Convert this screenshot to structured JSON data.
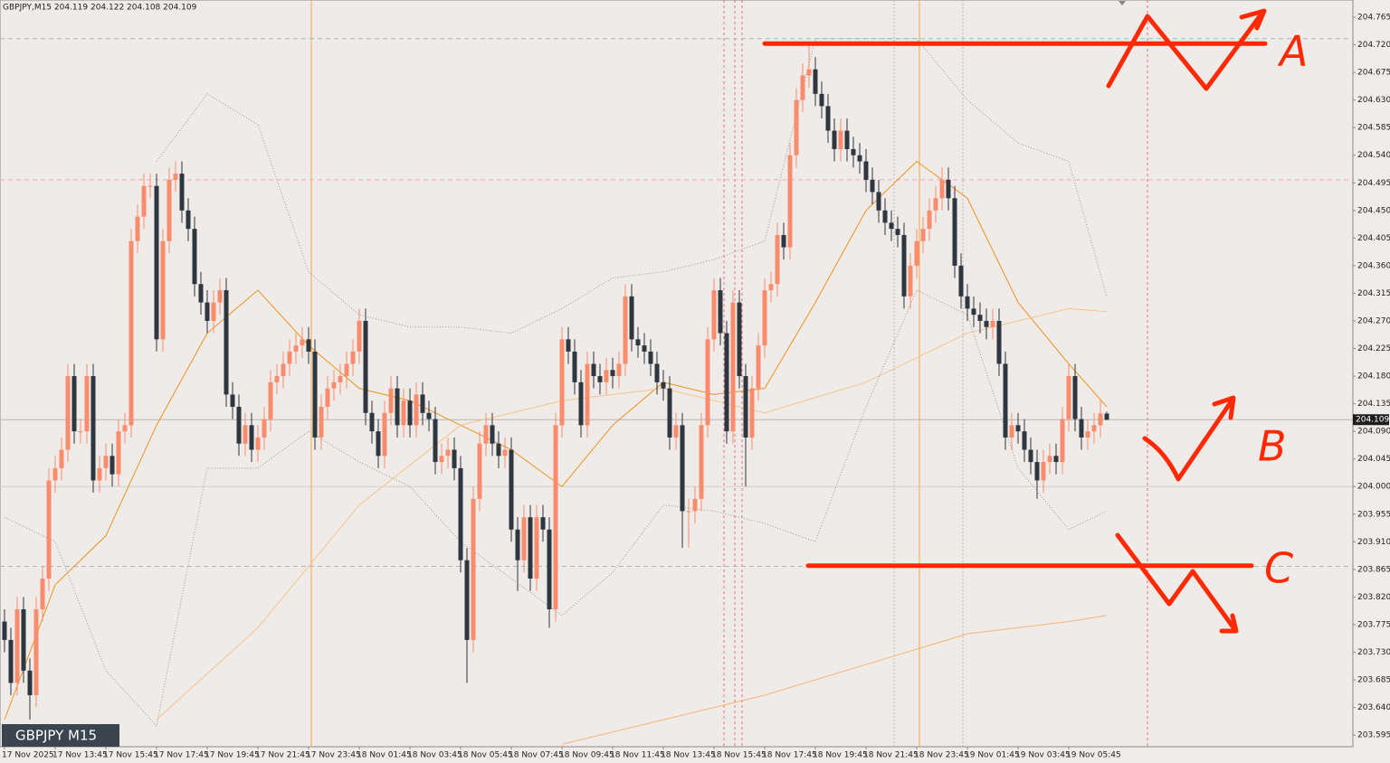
{
  "chart_data": {
    "type": "candlestick",
    "title": "GBPJPY,M15  204.119 204.122 204.108 204.109",
    "symbol_box": "GBPJPY M15",
    "up_color": "#f98c6c",
    "down_color": "#2e3640",
    "ylim": [
      203.576,
      204.793
    ],
    "yticks": [
      204.765,
      {
        "value": 204.72,
        "label": "204.720"
      },
      204.675,
      {
        "value": 204.63,
        "label": "204.630"
      },
      204.585,
      {
        "value": 204.54,
        "label": "204.540"
      },
      204.495,
      {
        "value": 204.45,
        "label": "204.450"
      },
      204.405,
      {
        "value": 204.36,
        "label": "204.360"
      },
      204.315,
      {
        "value": 204.27,
        "label": "204.270"
      },
      204.225,
      {
        "value": 204.18,
        "label": "204.180"
      },
      204.135,
      {
        "value": 204.09,
        "label": "204.090"
      },
      204.045,
      {
        "value": 204,
        "label": "204.000"
      },
      203.955,
      {
        "value": 203.91,
        "label": "203.910"
      },
      203.865,
      {
        "value": 203.82,
        "label": "203.820"
      },
      203.775,
      {
        "value": 203.73,
        "label": "203.730"
      },
      203.685,
      {
        "value": 203.64,
        "label": "203.640"
      },
      203.595
    ],
    "current_price": 204.109,
    "categories": [
      "17 Nov 2025",
      null,
      null,
      null,
      null,
      null,
      null,
      null,
      "17 Nov 13:45",
      null,
      null,
      null,
      null,
      null,
      null,
      null,
      "17 Nov 15:45",
      null,
      null,
      null,
      null,
      null,
      null,
      null,
      "17 Nov 17:45",
      null,
      null,
      null,
      null,
      null,
      null,
      null,
      "17 Nov 19:45",
      null,
      null,
      null,
      null,
      null,
      null,
      null,
      "17 Nov 21:45",
      null,
      null,
      null,
      null,
      null,
      null,
      null,
      "17 Nov 23:45",
      null,
      null,
      null,
      null,
      null,
      null,
      null,
      "18 Nov 01:45",
      null,
      null,
      null,
      null,
      null,
      null,
      null,
      "18 Nov 03:45",
      null,
      null,
      null,
      null,
      null,
      null,
      null,
      "18 Nov 05:45",
      null,
      null,
      null,
      null,
      null,
      null,
      null,
      "18 Nov 07:45",
      null,
      null,
      null,
      null,
      null,
      null,
      null,
      "18 Nov 09:45",
      null,
      null,
      null,
      null,
      null,
      null,
      null,
      "18 Nov 11:45",
      null,
      null,
      null,
      null,
      null,
      null,
      null,
      "18 Nov 13:45",
      null,
      null,
      null,
      null,
      null,
      null,
      null,
      "18 Nov 15:45",
      null,
      null,
      null,
      null,
      null,
      null,
      null,
      "18 Nov 17:45",
      null,
      null,
      null,
      null,
      null,
      null,
      null,
      "18 Nov 19:45",
      null,
      null,
      null,
      null,
      null,
      null,
      null,
      "18 Nov 21:45",
      null,
      null,
      null,
      null,
      null,
      null,
      null,
      "18 Nov 23:45",
      null,
      null,
      null,
      null,
      null,
      null,
      null,
      "19 Nov 01:45",
      null,
      null,
      null,
      null,
      null,
      null,
      null,
      "19 Nov 03:45",
      null,
      null,
      null,
      null,
      null,
      null,
      null,
      "19 Nov 05:45",
      null,
      null,
      null,
      null,
      null,
      null
    ],
    "open": [
      203.78,
      203.75,
      203.68,
      203.8,
      203.7,
      203.66,
      203.8,
      203.85,
      204.01,
      204.03,
      204.06,
      204.18,
      204.09,
      204.09,
      204.18,
      204.01,
      204.03,
      204.05,
      204.02,
      204.09,
      204.1,
      204.4,
      204.44,
      204.49,
      204.49,
      204.24,
      204.4,
      204.5,
      204.51,
      204.45,
      204.42,
      204.33,
      204.3,
      204.27,
      204.3,
      204.32,
      204.15,
      204.13,
      204.07,
      204.1,
      204.06,
      204.08,
      204.11,
      204.17,
      204.18,
      204.2,
      204.22,
      204.23,
      204.24,
      204.22,
      204.08,
      204.13,
      204.16,
      204.17,
      204.18,
      204.2,
      204.22,
      204.27,
      204.12,
      204.09,
      204.05,
      204.12,
      204.16,
      204.1,
      204.14,
      204.1,
      204.15,
      204.12,
      204.11,
      204.04,
      204.05,
      204.06,
      204.03,
      203.88,
      203.75,
      203.98,
      204.07,
      204.1,
      204.07,
      204.05,
      204.06,
      203.93,
      203.88,
      203.95,
      203.85,
      203.95,
      203.93,
      203.8,
      204.1,
      204.24,
      204.22,
      204.17,
      204.1,
      204.2,
      204.18,
      204.17,
      204.19,
      204.18,
      204.2,
      204.31,
      204.24,
      204.23,
      204.22,
      204.2,
      204.17,
      204.16,
      204.08,
      204.1,
      203.96,
      203.96,
      203.98,
      204.1,
      204.24,
      204.32,
      204.25,
      204.09,
      204.3,
      204.18,
      204.08,
      204.16,
      204.23,
      204.32,
      204.33,
      204.41,
      204.39,
      204.54,
      204.63,
      204.67,
      204.68,
      204.64,
      204.62,
      204.58,
      204.55,
      204.58,
      204.55,
      204.54,
      204.53,
      204.5,
      204.48,
      204.45,
      204.43,
      204.42,
      204.41,
      204.31,
      204.36,
      204.4,
      204.42,
      204.45,
      204.47,
      204.5,
      204.47,
      204.36,
      204.31,
      204.29,
      204.28,
      204.27,
      204.26,
      204.27,
      204.2,
      204.08,
      204.1,
      204.09,
      204.06,
      204.04,
      204.01,
      204.04,
      204.05,
      204.04,
      204.11,
      204.18,
      204.11,
      204.08,
      204.09,
      204.1,
      204.119
    ],
    "high": [
      203.8,
      203.77,
      203.82,
      203.82,
      203.72,
      203.82,
      203.87,
      204.03,
      204.05,
      204.08,
      204.2,
      204.2,
      204.11,
      204.2,
      204.2,
      204.05,
      204.07,
      204.07,
      204.11,
      204.12,
      204.42,
      204.46,
      204.51,
      204.51,
      204.51,
      204.42,
      204.52,
      204.53,
      204.53,
      204.47,
      204.44,
      204.35,
      204.32,
      204.32,
      204.34,
      204.34,
      204.17,
      204.15,
      204.12,
      204.12,
      204.1,
      204.13,
      204.19,
      204.2,
      204.22,
      204.24,
      204.25,
      204.26,
      204.26,
      204.24,
      204.15,
      204.18,
      204.19,
      204.2,
      204.22,
      204.24,
      204.29,
      204.29,
      204.14,
      204.11,
      204.14,
      204.18,
      204.18,
      204.16,
      204.16,
      204.17,
      204.17,
      204.14,
      204.13,
      204.07,
      204.08,
      204.08,
      204.05,
      203.9,
      204.0,
      204.09,
      204.12,
      204.12,
      204.09,
      204.08,
      204.08,
      203.95,
      203.97,
      203.97,
      203.97,
      203.97,
      203.95,
      204.12,
      204.26,
      204.26,
      204.24,
      204.19,
      204.22,
      204.22,
      204.2,
      204.21,
      204.21,
      204.22,
      204.33,
      204.33,
      204.26,
      204.25,
      204.24,
      204.22,
      204.19,
      204.18,
      204.12,
      204.12,
      203.98,
      204.0,
      204.12,
      204.26,
      204.34,
      204.34,
      204.27,
      204.32,
      204.32,
      204.2,
      204.18,
      204.25,
      204.34,
      204.35,
      204.43,
      204.43,
      204.56,
      204.65,
      204.69,
      204.72,
      204.7,
      204.66,
      204.64,
      204.6,
      204.6,
      204.6,
      204.57,
      204.56,
      204.55,
      204.52,
      204.5,
      204.47,
      204.45,
      204.44,
      204.43,
      204.38,
      204.42,
      204.44,
      204.47,
      204.49,
      204.52,
      204.52,
      204.49,
      204.38,
      204.33,
      204.31,
      204.3,
      204.29,
      204.29,
      204.29,
      204.22,
      204.12,
      204.12,
      204.11,
      204.08,
      204.06,
      204.06,
      204.07,
      204.07,
      204.13,
      204.2,
      204.2,
      204.13,
      204.11,
      204.12,
      204.14,
      204.122
    ],
    "low": [
      203.73,
      203.66,
      203.66,
      203.68,
      203.62,
      203.64,
      203.78,
      203.83,
      203.99,
      204.01,
      204.04,
      204.07,
      204.07,
      204.07,
      203.99,
      203.99,
      204.01,
      204.0,
      204.0,
      204.07,
      204.08,
      204.38,
      204.42,
      204.47,
      204.22,
      204.22,
      204.38,
      204.48,
      204.43,
      204.4,
      204.31,
      204.28,
      204.25,
      204.25,
      204.28,
      204.13,
      204.11,
      204.05,
      204.05,
      204.04,
      204.04,
      204.06,
      204.09,
      204.15,
      204.16,
      204.18,
      204.2,
      204.21,
      204.2,
      204.06,
      204.06,
      204.11,
      204.14,
      204.15,
      204.16,
      204.18,
      204.2,
      204.1,
      204.07,
      204.03,
      204.03,
      204.1,
      204.08,
      204.08,
      204.08,
      204.08,
      204.1,
      204.09,
      204.02,
      204.02,
      204.03,
      204.01,
      203.86,
      203.68,
      203.73,
      203.96,
      204.05,
      204.05,
      204.03,
      204.03,
      203.91,
      203.83,
      203.86,
      203.83,
      203.83,
      203.91,
      203.77,
      203.78,
      204.08,
      204.2,
      204.15,
      204.08,
      204.08,
      204.16,
      204.15,
      204.15,
      204.16,
      204.16,
      204.18,
      204.22,
      204.21,
      204.2,
      204.18,
      204.15,
      204.14,
      204.06,
      204.06,
      203.9,
      203.9,
      203.94,
      203.96,
      204.08,
      204.22,
      204.23,
      204.07,
      204.07,
      204.16,
      204.0,
      204.06,
      204.14,
      204.21,
      204.3,
      204.31,
      204.37,
      204.37,
      204.52,
      204.61,
      204.65,
      204.62,
      204.6,
      204.56,
      204.53,
      204.53,
      204.53,
      204.52,
      204.51,
      204.48,
      204.46,
      204.43,
      204.41,
      204.4,
      204.39,
      204.29,
      204.29,
      204.34,
      204.38,
      204.4,
      204.43,
      204.45,
      204.45,
      204.34,
      204.29,
      204.27,
      204.26,
      204.25,
      204.24,
      204.24,
      204.18,
      204.06,
      204.06,
      204.07,
      204.04,
      204.02,
      203.98,
      203.99,
      204.02,
      204.02,
      204.02,
      204.09,
      204.09,
      204.06,
      204.06,
      204.07,
      204.08,
      204.108
    ],
    "close": [
      203.75,
      203.68,
      203.8,
      203.7,
      203.66,
      203.8,
      203.85,
      204.01,
      204.03,
      204.06,
      204.18,
      204.09,
      204.09,
      204.18,
      204.01,
      204.03,
      204.05,
      204.02,
      204.09,
      204.1,
      204.4,
      204.44,
      204.49,
      204.49,
      204.24,
      204.4,
      204.5,
      204.51,
      204.45,
      204.42,
      204.33,
      204.3,
      204.27,
      204.3,
      204.32,
      204.15,
      204.13,
      204.07,
      204.1,
      204.06,
      204.08,
      204.11,
      204.17,
      204.18,
      204.2,
      204.22,
      204.23,
      204.24,
      204.22,
      204.08,
      204.13,
      204.16,
      204.17,
      204.18,
      204.2,
      204.22,
      204.27,
      204.12,
      204.09,
      204.05,
      204.12,
      204.16,
      204.1,
      204.14,
      204.1,
      204.15,
      204.12,
      204.11,
      204.04,
      204.05,
      204.06,
      204.03,
      203.88,
      203.75,
      203.98,
      204.07,
      204.1,
      204.07,
      204.05,
      204.06,
      203.93,
      203.88,
      203.95,
      203.85,
      203.95,
      203.93,
      203.8,
      204.1,
      204.24,
      204.22,
      204.17,
      204.1,
      204.2,
      204.18,
      204.17,
      204.19,
      204.18,
      204.2,
      204.31,
      204.24,
      204.23,
      204.22,
      204.2,
      204.17,
      204.16,
      204.08,
      204.1,
      203.96,
      203.96,
      203.98,
      204.1,
      204.24,
      204.32,
      204.25,
      204.09,
      204.3,
      204.18,
      204.08,
      204.16,
      204.23,
      204.32,
      204.33,
      204.41,
      204.39,
      204.54,
      204.63,
      204.67,
      204.68,
      204.64,
      204.62,
      204.58,
      204.55,
      204.58,
      204.55,
      204.54,
      204.53,
      204.5,
      204.48,
      204.45,
      204.43,
      204.42,
      204.41,
      204.31,
      204.36,
      204.4,
      204.42,
      204.45,
      204.47,
      204.5,
      204.47,
      204.36,
      204.31,
      204.29,
      204.28,
      204.27,
      204.26,
      204.27,
      204.2,
      204.08,
      204.1,
      204.09,
      204.06,
      204.04,
      204.01,
      204.04,
      204.05,
      204.04,
      204.11,
      204.18,
      204.11,
      204.08,
      204.09,
      204.1,
      204.119,
      204.109
    ],
    "overlays": [
      {
        "color": "#f0921e",
        "style": "solid",
        "x": [
          0,
          8,
          16,
          24,
          32,
          40,
          48,
          56,
          64,
          72,
          80,
          88,
          96,
          104,
          112,
          120,
          128,
          136,
          144,
          152,
          160,
          168,
          174
        ],
        "values": [
          203.62,
          203.84,
          203.92,
          204.1,
          204.25,
          204.32,
          204.23,
          204.16,
          204.14,
          204.1,
          204.06,
          204.0,
          204.1,
          204.17,
          204.15,
          204.16,
          204.3,
          204.45,
          204.53,
          204.47,
          204.3,
          204.2,
          204.13
        ]
      },
      {
        "color": "#f7c48a",
        "style": "solid",
        "x": [
          24,
          40,
          56,
          72,
          88,
          104,
          120,
          136,
          152,
          168,
          174
        ],
        "values": [
          203.62,
          203.77,
          203.97,
          204.1,
          204.14,
          204.16,
          204.12,
          204.17,
          204.25,
          204.29,
          204.285
        ]
      },
      {
        "color": "#f5b571",
        "style": "solid",
        "x": [
          88,
          104,
          120,
          136,
          152,
          168,
          174
        ],
        "values": [
          203.58,
          203.62,
          203.66,
          203.71,
          203.76,
          203.78,
          203.79
        ]
      },
      {
        "color": "#9a9a9a",
        "style": "dotted",
        "x": [
          24,
          32,
          40,
          48,
          56,
          64,
          72,
          80,
          88,
          96,
          104,
          112,
          120,
          128,
          144,
          152,
          160,
          168,
          174
        ],
        "values": [
          204.53,
          204.64,
          204.59,
          204.35,
          204.28,
          204.26,
          204.26,
          204.25,
          204.29,
          204.34,
          204.35,
          204.37,
          204.4,
          204.73,
          204.73,
          204.63,
          204.56,
          204.53,
          204.31
        ]
      },
      {
        "color": "#9a9a9a",
        "style": "dotted",
        "x": [
          0,
          8,
          16,
          24,
          32,
          40,
          48,
          56,
          64,
          72,
          80,
          88,
          96,
          104,
          112,
          120,
          128,
          136,
          144,
          152,
          160,
          168,
          174
        ],
        "values": [
          203.95,
          203.91,
          203.7,
          203.61,
          204.03,
          204.03,
          204.09,
          204.04,
          204.0,
          203.91,
          203.85,
          203.79,
          203.86,
          203.97,
          203.96,
          203.94,
          203.91,
          204.13,
          204.32,
          204.28,
          204.03,
          203.93,
          203.96
        ]
      }
    ],
    "levels": [
      {
        "value": 204.73,
        "color": "#a9b7c9",
        "style": "dashed"
      },
      {
        "value": 204.5,
        "color": "#f2a7b5",
        "style": "dashed"
      },
      {
        "value": 203.87,
        "color": "#a9b7c9",
        "style": "dashed"
      },
      {
        "value": 204,
        "color": "#d2cecb",
        "style": "solid"
      },
      {
        "value": 204.109,
        "color": "#b9b5b2",
        "style": "solid"
      }
    ],
    "markers": [
      {
        "value": 204.722
      },
      {
        "value": 203.871
      }
    ],
    "annotations": [
      "A",
      "B",
      "C"
    ]
  }
}
